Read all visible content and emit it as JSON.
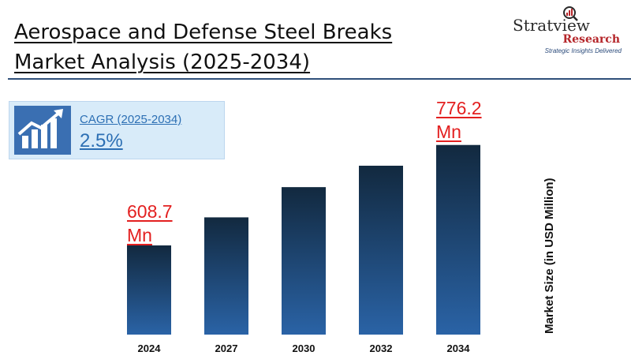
{
  "title": {
    "line1": "Aerospace and Defense Steel Breaks",
    "line2": "Market Analysis (2025-2034)"
  },
  "logo": {
    "brand": "Stratview",
    "brand2": "Research",
    "tagline": "Strategic Insights Delivered",
    "icon": "magnifier-chart-icon"
  },
  "cagr": {
    "icon": "growth-chart-icon",
    "label": "CAGR (2025-2034)",
    "value": "2.5%"
  },
  "colors": {
    "bar_top": "#12293f",
    "bar_bottom": "#2a63a6",
    "callout": "#e32020",
    "accent": "#2c6fb4"
  },
  "chart_data": {
    "type": "bar",
    "categories": [
      "2024",
      "2027",
      "2030",
      "2032",
      "2034"
    ],
    "values": [
      608.7,
      655.5,
      705.9,
      741.6,
      776.2
    ],
    "ylabel": "Market Size (in USD Million)",
    "data_labels": [
      {
        "category": "2024",
        "line1": "608.7",
        "line2": "Mn"
      },
      {
        "category": "2034",
        "line1": "776.2",
        "line2": "Mn"
      }
    ],
    "grid": false,
    "legend": "none"
  }
}
